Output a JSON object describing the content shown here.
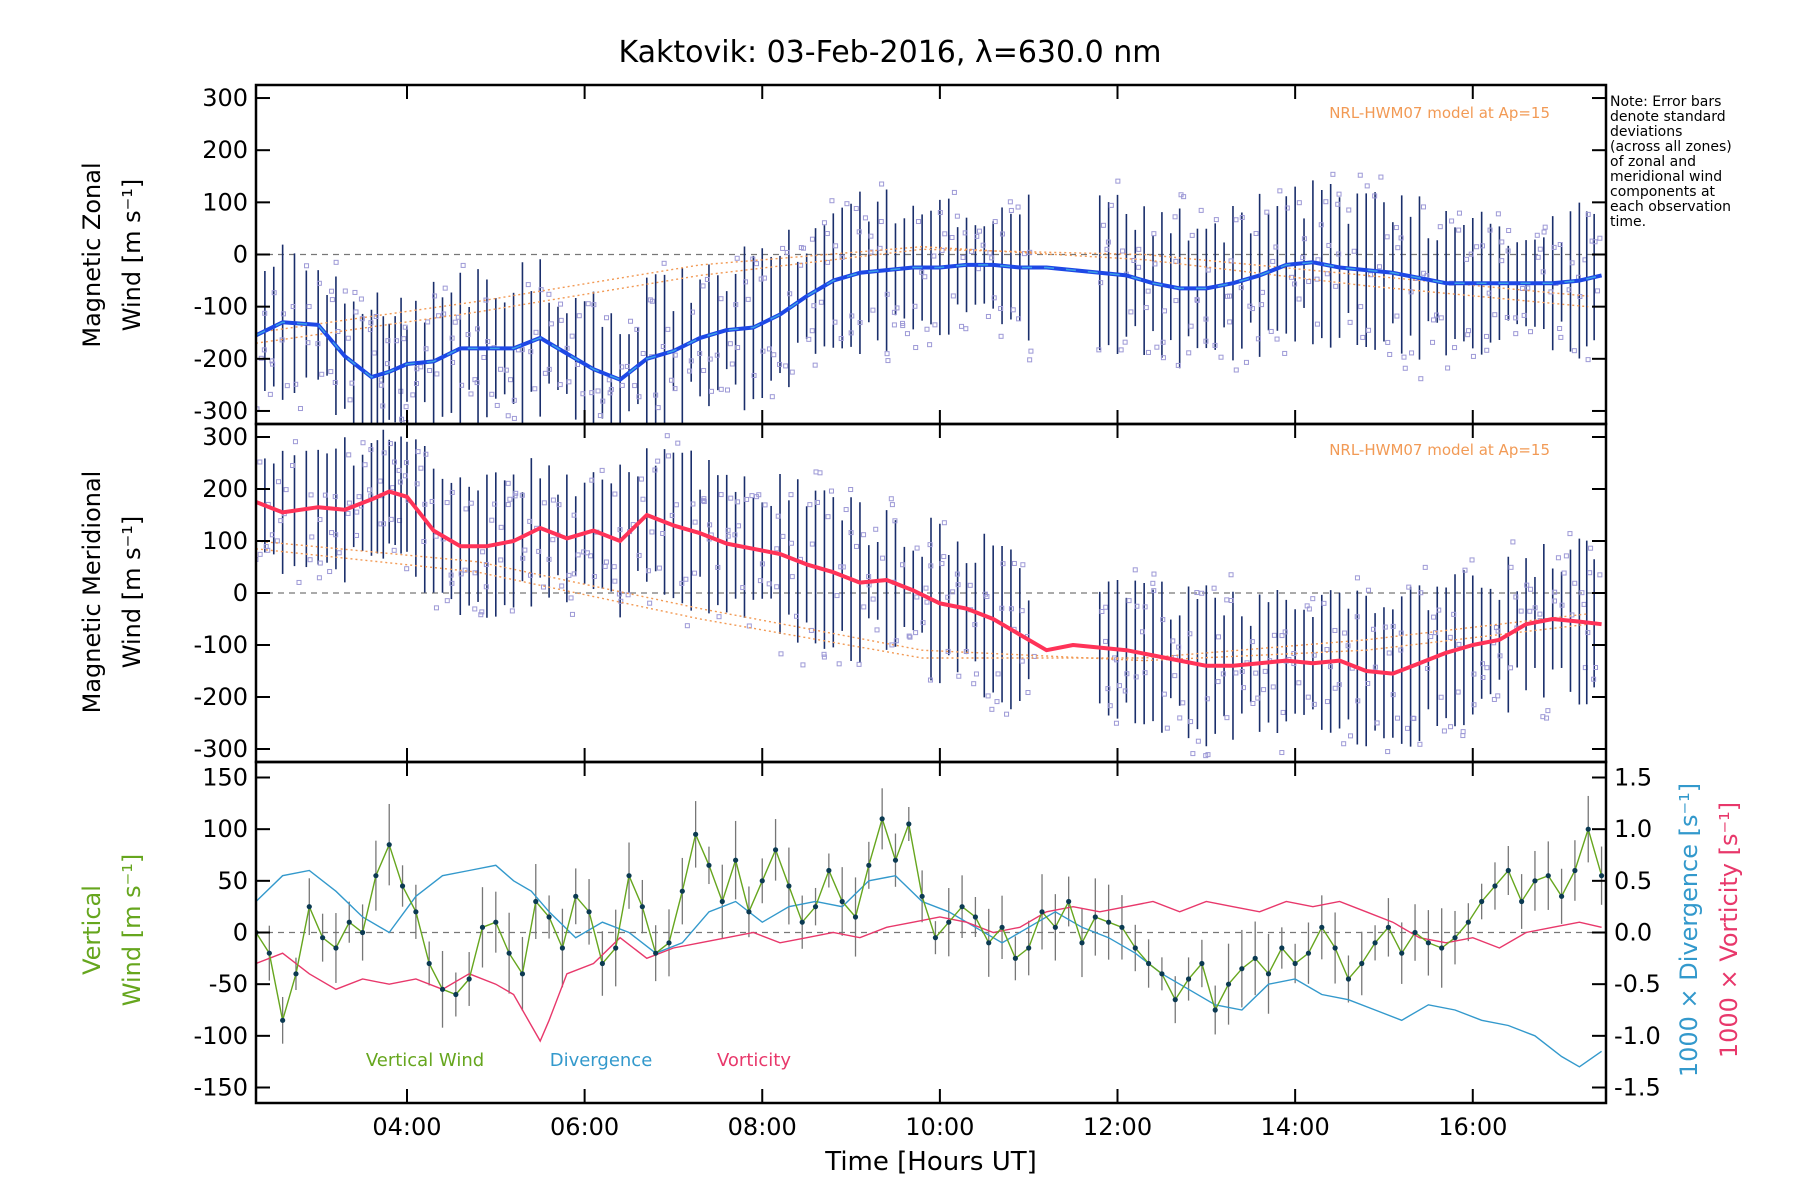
{
  "title": "Kaktovik: 03-Feb-2016, λ=630.0 nm",
  "note": [
    "Note: Error bars",
    "denote standard",
    "deviations",
    "(across all zones)",
    "of zonal and",
    "meridional wind",
    "components at",
    "each observation",
    "time."
  ],
  "colors": {
    "zonal_mean": "#1e48e6",
    "zonal_mean_light": "#3aa0e6",
    "meridional_mean": "#ff3358",
    "vertical_wind": "#66a61e",
    "divergence": "#3399cc",
    "vorticity": "#e8386b",
    "error_bar": "#1a2e6b",
    "scatter": "#9d99d6",
    "model": "#f29a55"
  },
  "chart_data": [
    {
      "type": "line",
      "panel": "zonal",
      "ylabel_line1": "Magnetic Zonal",
      "ylabel_line2": "Wind [m s⁻¹]",
      "ylim": [
        -325,
        325
      ],
      "yticks": [
        300,
        200,
        100,
        0,
        -100,
        -200,
        -300
      ],
      "model_label": "NRL-HWM07 model at Ap=15",
      "series": [
        {
          "x": [
            2.3,
            2.6,
            3.0,
            3.3,
            3.6,
            3.8,
            4.0,
            4.3,
            4.6,
            4.9,
            5.2,
            5.5,
            5.8,
            6.1,
            6.4,
            6.7,
            7.0,
            7.3,
            7.6,
            7.9,
            8.2,
            8.5,
            8.8,
            9.1,
            9.4,
            9.7,
            10.0,
            10.3,
            10.6,
            10.9,
            11.2,
            11.5,
            11.8,
            12.1,
            12.4,
            12.7,
            13.0,
            13.3,
            13.6,
            13.9,
            14.2,
            14.5,
            14.8,
            15.1,
            15.4,
            15.7,
            16.0,
            16.3,
            16.6,
            16.9,
            17.2,
            17.45
          ],
          "values": [
            -155,
            -130,
            -135,
            -195,
            -235,
            -225,
            -210,
            -205,
            -180,
            -180,
            -180,
            -160,
            -190,
            -220,
            -240,
            -200,
            -185,
            -160,
            -145,
            -140,
            -115,
            -80,
            -50,
            -35,
            -30,
            -25,
            -25,
            -20,
            -20,
            -25,
            -25,
            -30,
            -35,
            -40,
            -55,
            -65,
            -65,
            -55,
            -40,
            -20,
            -15,
            -25,
            -30,
            -35,
            -45,
            -55,
            -55,
            -55,
            -55,
            -55,
            -50,
            -40
          ]
        }
      ]
    },
    {
      "type": "line",
      "panel": "meridional",
      "ylabel_line1": "Magnetic Meridional",
      "ylabel_line2": "Wind [m s⁻¹]",
      "ylim": [
        -325,
        325
      ],
      "yticks": [
        300,
        200,
        100,
        0,
        -100,
        -200,
        -300
      ],
      "model_label": "NRL-HWM07 model at Ap=15",
      "series": [
        {
          "x": [
            2.3,
            2.6,
            3.0,
            3.3,
            3.6,
            3.8,
            4.0,
            4.3,
            4.6,
            4.9,
            5.2,
            5.5,
            5.8,
            6.1,
            6.4,
            6.7,
            7.0,
            7.3,
            7.6,
            7.9,
            8.2,
            8.5,
            8.8,
            9.1,
            9.4,
            9.7,
            10.0,
            10.3,
            10.6,
            10.9,
            11.2,
            11.5,
            11.8,
            12.1,
            12.4,
            12.7,
            13.0,
            13.3,
            13.6,
            13.9,
            14.2,
            14.5,
            14.8,
            15.1,
            15.4,
            15.7,
            16.0,
            16.3,
            16.6,
            16.9,
            17.2,
            17.45
          ],
          "values": [
            175,
            155,
            165,
            160,
            180,
            195,
            185,
            120,
            90,
            90,
            100,
            125,
            105,
            120,
            100,
            150,
            130,
            115,
            95,
            85,
            75,
            55,
            40,
            20,
            25,
            5,
            -20,
            -30,
            -50,
            -80,
            -110,
            -100,
            -105,
            -110,
            -120,
            -130,
            -140,
            -140,
            -135,
            -130,
            -135,
            -130,
            -150,
            -155,
            -135,
            -115,
            -100,
            -90,
            -60,
            -50,
            -55,
            -60
          ]
        }
      ]
    },
    {
      "type": "line",
      "panel": "vertical",
      "ylabel_line1": "Vertical",
      "ylabel_line2": "Wind [m s⁻¹]",
      "y2label_div": "1000 × Divergence [s⁻¹]",
      "y2label_vort": "1000 × Vorticity [s⁻¹]",
      "ylim": [
        -165,
        165
      ],
      "yticks": [
        150,
        100,
        50,
        0,
        -50,
        -100,
        -150
      ],
      "y2lim": [
        -1.65,
        1.65
      ],
      "y2ticks": [
        "1.5",
        "1.0",
        "0.5",
        "0.0",
        "-0.5",
        "-1.0",
        "-1.5"
      ],
      "series": [
        {
          "name": "Vertical Wind",
          "x": [
            2.3,
            2.45,
            2.6,
            2.75,
            2.9,
            3.05,
            3.2,
            3.35,
            3.5,
            3.65,
            3.8,
            3.95,
            4.1,
            4.25,
            4.4,
            4.55,
            4.7,
            4.85,
            5.0,
            5.15,
            5.3,
            5.45,
            5.6,
            5.75,
            5.9,
            6.05,
            6.2,
            6.35,
            6.5,
            6.65,
            6.8,
            6.95,
            7.1,
            7.25,
            7.4,
            7.55,
            7.7,
            7.85,
            8.0,
            8.15,
            8.3,
            8.45,
            8.6,
            8.75,
            8.9,
            9.05,
            9.2,
            9.35,
            9.5,
            9.65,
            9.8,
            9.95,
            10.1,
            10.25,
            10.4,
            10.55,
            10.7,
            10.85,
            11.0,
            11.15,
            11.3,
            11.45,
            11.6,
            11.75,
            11.9,
            12.05,
            12.2,
            12.35,
            12.5,
            12.65,
            12.8,
            12.95,
            13.1,
            13.25,
            13.4,
            13.55,
            13.7,
            13.85,
            14.0,
            14.15,
            14.3,
            14.45,
            14.6,
            14.75,
            14.9,
            15.05,
            15.2,
            15.35,
            15.5,
            15.65,
            15.8,
            15.95,
            16.1,
            16.25,
            16.4,
            16.55,
            16.7,
            16.85,
            17.0,
            17.15,
            17.3,
            17.45
          ],
          "values": [
            0,
            -20,
            -85,
            -40,
            25,
            -5,
            -15,
            10,
            0,
            55,
            85,
            45,
            20,
            -30,
            -55,
            -60,
            -45,
            5,
            10,
            -20,
            -40,
            30,
            15,
            -15,
            35,
            20,
            -30,
            -15,
            55,
            25,
            -20,
            -10,
            40,
            95,
            65,
            30,
            70,
            20,
            50,
            80,
            45,
            10,
            25,
            60,
            30,
            15,
            65,
            110,
            70,
            105,
            35,
            -5,
            10,
            25,
            15,
            -10,
            5,
            -25,
            -15,
            20,
            5,
            30,
            -10,
            15,
            10,
            5,
            -15,
            -30,
            -40,
            -65,
            -45,
            -30,
            -75,
            -50,
            -35,
            -25,
            -40,
            -15,
            -30,
            -20,
            5,
            -15,
            -45,
            -30,
            -10,
            5,
            -20,
            0,
            -10,
            -15,
            -5,
            10,
            30,
            45,
            60,
            30,
            50,
            55,
            35,
            60,
            100,
            55
          ]
        },
        {
          "name": "Divergence",
          "x": [
            2.3,
            2.6,
            2.9,
            3.2,
            3.5,
            3.8,
            4.1,
            4.4,
            4.7,
            5.0,
            5.2,
            5.4,
            5.6,
            5.9,
            6.2,
            6.5,
            6.8,
            7.1,
            7.4,
            7.7,
            8.0,
            8.3,
            8.6,
            8.9,
            9.2,
            9.5,
            9.8,
            10.1,
            10.4,
            10.7,
            11.0,
            11.3,
            11.6,
            11.9,
            12.2,
            12.5,
            12.8,
            13.1,
            13.4,
            13.7,
            14.0,
            14.3,
            14.6,
            14.9,
            15.2,
            15.5,
            15.8,
            16.1,
            16.4,
            16.7,
            17.0,
            17.2,
            17.45
          ],
          "values": [
            0.3,
            0.55,
            0.6,
            0.4,
            0.15,
            0.0,
            0.35,
            0.55,
            0.6,
            0.65,
            0.5,
            0.4,
            0.2,
            -0.05,
            0.1,
            0.0,
            -0.2,
            -0.1,
            0.2,
            0.3,
            0.1,
            0.25,
            0.3,
            0.25,
            0.5,
            0.55,
            0.3,
            0.2,
            0.05,
            -0.1,
            0.05,
            0.2,
            0.05,
            -0.05,
            -0.2,
            -0.4,
            -0.55,
            -0.7,
            -0.75,
            -0.5,
            -0.45,
            -0.6,
            -0.65,
            -0.75,
            -0.85,
            -0.7,
            -0.75,
            -0.85,
            -0.9,
            -1.0,
            -1.2,
            -1.3,
            -1.15
          ]
        },
        {
          "name": "Vorticity",
          "x": [
            2.3,
            2.6,
            2.9,
            3.2,
            3.5,
            3.8,
            4.1,
            4.4,
            4.7,
            5.0,
            5.2,
            5.4,
            5.5,
            5.6,
            5.8,
            6.1,
            6.4,
            6.7,
            7.0,
            7.3,
            7.6,
            7.9,
            8.2,
            8.5,
            8.8,
            9.1,
            9.4,
            9.7,
            10.0,
            10.3,
            10.6,
            10.9,
            11.2,
            11.5,
            11.8,
            12.1,
            12.4,
            12.7,
            13.0,
            13.3,
            13.6,
            13.9,
            14.2,
            14.5,
            14.8,
            15.1,
            15.4,
            15.7,
            16.0,
            16.3,
            16.6,
            16.9,
            17.2,
            17.45
          ],
          "values": [
            -0.3,
            -0.2,
            -0.4,
            -0.55,
            -0.45,
            -0.5,
            -0.45,
            -0.55,
            -0.4,
            -0.5,
            -0.6,
            -0.9,
            -1.05,
            -0.85,
            -0.4,
            -0.3,
            -0.05,
            -0.25,
            -0.15,
            -0.1,
            -0.05,
            0.0,
            -0.1,
            -0.05,
            0.0,
            -0.05,
            0.05,
            0.1,
            0.15,
            0.1,
            0.0,
            0.05,
            0.2,
            0.25,
            0.2,
            0.25,
            0.3,
            0.2,
            0.3,
            0.25,
            0.2,
            0.3,
            0.25,
            0.3,
            0.2,
            0.1,
            -0.05,
            -0.1,
            -0.05,
            -0.15,
            0.0,
            0.05,
            0.1,
            0.05
          ]
        }
      ]
    }
  ],
  "xaxis": {
    "label": "Time [Hours UT]",
    "xlim": [
      2.3,
      17.5
    ],
    "ticks": [
      {
        "v": 4,
        "label": "04:00"
      },
      {
        "v": 6,
        "label": "06:00"
      },
      {
        "v": 8,
        "label": "08:00"
      },
      {
        "v": 10,
        "label": "10:00"
      },
      {
        "v": 12,
        "label": "12:00"
      },
      {
        "v": 14,
        "label": "14:00"
      },
      {
        "v": 16,
        "label": "16:00"
      }
    ]
  },
  "legend": {
    "vertical": "Vertical Wind",
    "divergence": "Divergence",
    "vorticity": "Vorticity"
  }
}
